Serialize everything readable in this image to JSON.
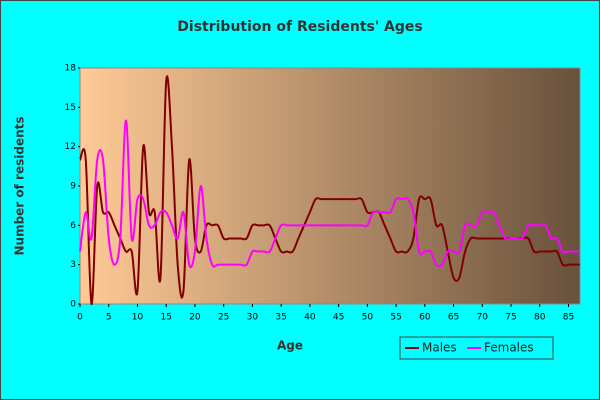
{
  "chart_data": {
    "type": "line",
    "title": "Distribution of Residents' Ages",
    "x_label": "Age",
    "y_label": "Number of residents",
    "x": [
      0,
      1,
      2,
      3,
      4,
      5,
      6,
      7,
      8,
      9,
      10,
      11,
      12,
      13,
      14,
      15,
      16,
      17,
      18,
      19,
      20,
      21,
      22,
      23,
      24,
      25,
      26,
      27,
      28,
      29,
      30,
      31,
      32,
      33,
      34,
      35,
      36,
      37,
      38,
      39,
      40,
      41,
      42,
      43,
      44,
      45,
      46,
      47,
      48,
      49,
      50,
      51,
      52,
      53,
      54,
      55,
      56,
      57,
      58,
      59,
      60,
      61,
      62,
      63,
      64,
      65,
      66,
      67,
      68,
      69,
      70,
      71,
      72,
      73,
      74,
      75,
      76,
      77,
      78,
      79,
      80,
      81,
      82,
      83,
      84,
      85,
      86,
      87
    ],
    "series": [
      {
        "name": "Males",
        "color": "#800000",
        "values": [
          11,
          11,
          0,
          9,
          7,
          7,
          6,
          5,
          4,
          4,
          1,
          12,
          7,
          7,
          2,
          17,
          12,
          3,
          1,
          11,
          5,
          4,
          6,
          6,
          6,
          5,
          5,
          5,
          5,
          5,
          6,
          6,
          6,
          6,
          5,
          4,
          4,
          4,
          5,
          6,
          7,
          8,
          8,
          8,
          8,
          8,
          8,
          8,
          8,
          8,
          7,
          7,
          7,
          6,
          5,
          4,
          4,
          4,
          5,
          8,
          8,
          8,
          6,
          6,
          4,
          2,
          2,
          4,
          5,
          5,
          5,
          5,
          5,
          5,
          5,
          5,
          5,
          5,
          5,
          4,
          4,
          4,
          4,
          4,
          3,
          3,
          3,
          3
        ]
      },
      {
        "name": "Females",
        "color": "#ff00ff",
        "values": [
          4,
          7,
          5,
          11,
          11,
          5,
          3,
          5,
          14,
          5,
          8,
          8,
          6,
          6,
          7,
          7,
          6,
          5,
          7,
          3,
          4,
          9,
          5,
          3,
          3,
          3,
          3,
          3,
          3,
          3,
          4,
          4,
          4,
          4,
          5,
          6,
          6,
          6,
          6,
          6,
          6,
          6,
          6,
          6,
          6,
          6,
          6,
          6,
          6,
          6,
          6,
          7,
          7,
          7,
          7,
          8,
          8,
          8,
          7,
          4,
          4,
          4,
          3,
          3,
          4,
          4,
          4,
          6,
          6,
          6,
          7,
          7,
          7,
          6,
          5,
          5,
          5,
          5,
          6,
          6,
          6,
          6,
          5,
          5,
          4,
          4,
          4,
          4
        ]
      }
    ],
    "xlim": [
      0,
      87
    ],
    "xticks": [
      0,
      5,
      10,
      15,
      20,
      25,
      30,
      35,
      40,
      45,
      50,
      55,
      60,
      65,
      70,
      75,
      80,
      85
    ],
    "ylim": [
      0,
      18
    ],
    "yticks": [
      0,
      3,
      6,
      9,
      12,
      15,
      18
    ],
    "grid": false,
    "legend": "bottom-right"
  }
}
